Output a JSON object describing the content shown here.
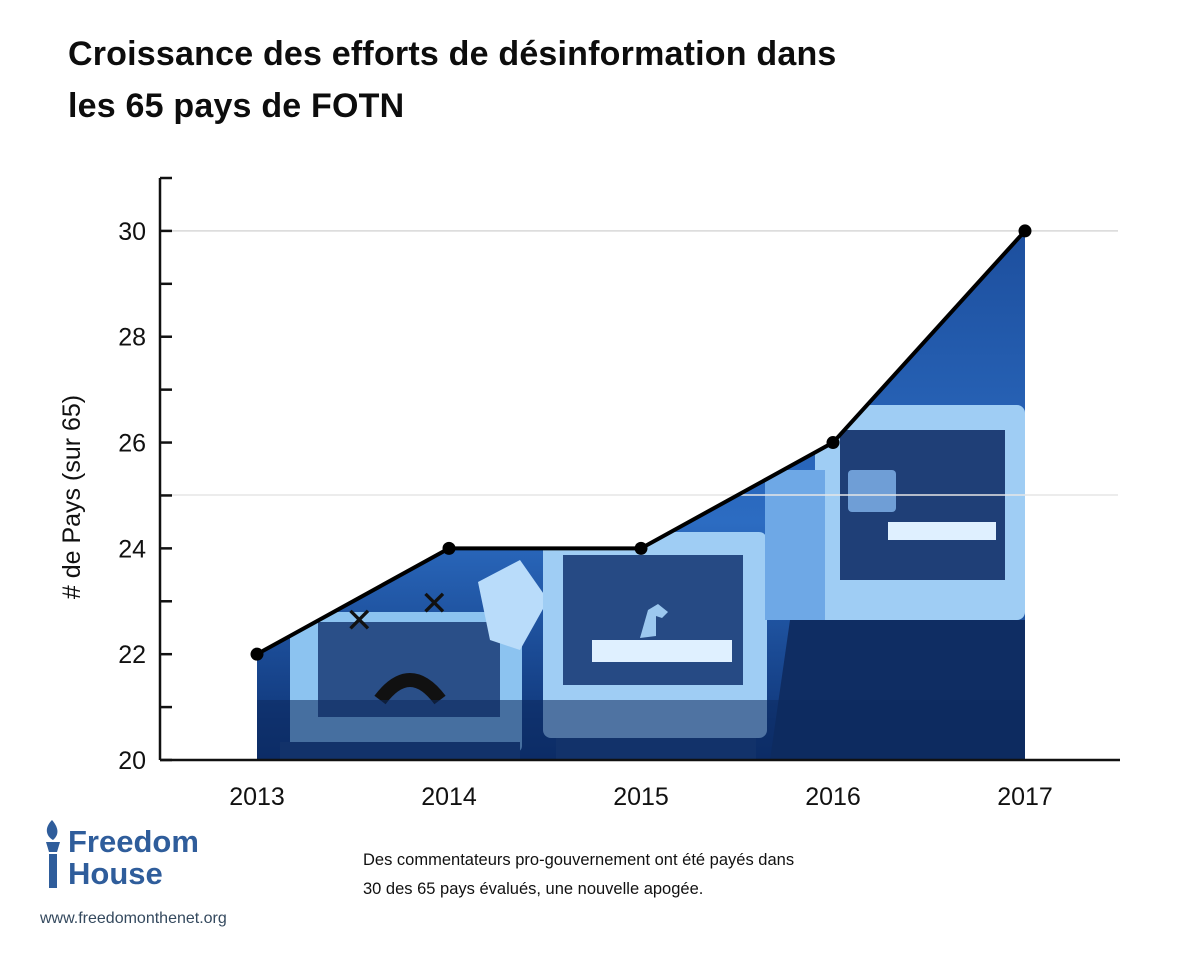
{
  "header": {
    "title_line1": "Croissance des efforts de désinformation dans",
    "title_line2": "les 65 pays de FOTN"
  },
  "chart_data": {
    "type": "area",
    "title": "Croissance des efforts de désinformation dans les 65 pays de FOTN",
    "xlabel": "",
    "ylabel": "# de Pays (sur 65)",
    "categories": [
      "2013",
      "2014",
      "2015",
      "2016",
      "2017"
    ],
    "values": [
      22,
      24,
      24,
      26,
      30
    ],
    "ylim": [
      20,
      31
    ],
    "yticks": [
      20,
      22,
      24,
      26,
      28,
      30
    ],
    "grid": true,
    "legend": "none",
    "fill_description": "photo of people with CRT monitors on heads, blue duotone",
    "colors": {
      "line": "#000000",
      "fill_dark": "#0b2a66",
      "fill_mid": "#2f6fc4",
      "fill_light": "#8fc0ee",
      "grid": "#d8d8d8"
    }
  },
  "footer": {
    "logo_line1": "Freedom",
    "logo_line2": "House",
    "logo_icon": "torch-icon",
    "website": "www.freedomonthenet.org",
    "caption_line1": "Des commentateurs pro-gouvernement ont été payés dans",
    "caption_line2": "30 des 65 pays évalués, une nouvelle apogée."
  }
}
